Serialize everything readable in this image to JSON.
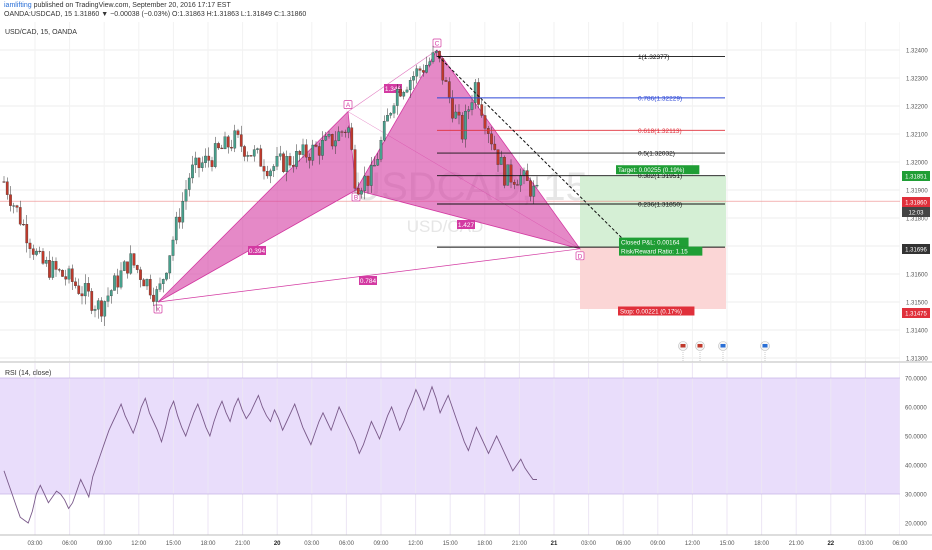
{
  "header": {
    "author": "iamlifting",
    "published": "published on TradingView.com, September 20, 2016 17:17 EST",
    "quote": "OANDA:USDCAD, 15  1.31860 ▼ −0.00038 (−0.03%)  O:1.31863  H:1.31863  L:1.31849  C:1.31860"
  },
  "main_label": "USD/CAD, 15, OANDA",
  "watermark": {
    "symbol": "USDCAD, 15",
    "sub": "USD/CAD"
  },
  "colors": {
    "bull": "#47a08c",
    "bear": "#c0392b",
    "pattern": "#d33aa2",
    "rsi_band": "#e9ddfb",
    "fib_blue": "#2c47d6",
    "fib_red": "#e0303b",
    "target": "#1f9e35",
    "stop": "#e0303b"
  },
  "chart_data": [
    {
      "type": "candlestick",
      "title": "USD/CAD, 15, OANDA",
      "ylim": [
        1.3128,
        1.3246
      ],
      "price_ticks": [
        "1.32400",
        "1.32300",
        "1.32200",
        "1.32100",
        "1.32000",
        "1.31900",
        "1.31800",
        "1.31700",
        "1.31600",
        "1.31500",
        "1.31400",
        "1.31300"
      ],
      "time_ticks": [
        "03:00",
        "06:00",
        "09:00",
        "12:00",
        "15:00",
        "18:00",
        "21:00",
        "20",
        "03:00",
        "06:00",
        "09:00",
        "12:00",
        "15:00",
        "18:00",
        "21:00",
        "21",
        "03:00",
        "06:00",
        "09:00",
        "12:00",
        "15:00",
        "18:00",
        "21:00",
        "22",
        "03:00",
        "06:00"
      ],
      "price_badges": [
        {
          "value": "1.31851",
          "color": "#1f9e35"
        },
        {
          "value": "1.31860",
          "color": "#e0303b"
        },
        {
          "value": "12:03",
          "color": "#444444"
        },
        {
          "value": "1.31696",
          "color": "#333333"
        },
        {
          "value": "1.31475",
          "color": "#e0303b"
        }
      ],
      "harmonic_points": [
        {
          "label": "X",
          "price": 1.315
        },
        {
          "label": "A",
          "price": 1.3218
        },
        {
          "label": "B",
          "price": 1.319
        },
        {
          "label": "C",
          "price": 1.324
        },
        {
          "label": "D",
          "price": 1.3169
        }
      ],
      "harmonic_ratios": [
        "0.394",
        "0.784",
        "1.346",
        "1.427"
      ],
      "fib_levels": [
        {
          "ratio": "1",
          "price": 1.32377
        },
        {
          "ratio": "0.786",
          "price": 1.32229
        },
        {
          "ratio": "0.618",
          "price": 1.32113
        },
        {
          "ratio": "0.5",
          "price": 1.32032
        },
        {
          "ratio": "0.382",
          "price": 1.31951
        },
        {
          "ratio": "0.236",
          "price": 1.3185
        },
        {
          "ratio": "0",
          "price": 1.31696
        }
      ],
      "position": {
        "entry": 1.31696,
        "target_price": 1.31951,
        "stop_price": 1.31475,
        "target_label": "Target: 0.00255 (0.19%)",
        "open_label": "Closed P&L: 0.00164",
        "rr_label": "Risk/Reward Ratio: 1.15",
        "stop_label": "Stop: 0.00221 (0.17%)"
      }
    },
    {
      "type": "line",
      "title": "RSI (14, close)",
      "ylim": [
        15,
        75
      ],
      "ticks": [
        "70.0000",
        "60.0000",
        "50.0000",
        "40.0000",
        "30.0000",
        "20.0000"
      ],
      "band": [
        30,
        70
      ],
      "values": [
        38,
        34,
        30,
        26,
        22,
        21,
        20,
        24,
        30,
        33,
        30,
        27,
        29,
        31,
        30,
        28,
        25,
        27,
        31,
        35,
        32,
        29,
        36,
        40,
        44,
        48,
        52,
        55,
        58,
        61,
        57,
        54,
        51,
        55,
        60,
        63,
        58,
        55,
        52,
        48,
        53,
        59,
        62,
        57,
        53,
        50,
        54,
        58,
        61,
        57,
        53,
        50,
        55,
        59,
        62,
        58,
        55,
        60,
        63,
        59,
        56,
        58,
        61,
        64,
        60,
        57,
        55,
        59,
        56,
        52,
        55,
        58,
        61,
        57,
        53,
        50,
        47,
        51,
        55,
        58,
        55,
        52,
        56,
        60,
        57,
        54,
        51,
        48,
        44,
        47,
        51,
        55,
        52,
        49,
        53,
        57,
        60,
        56,
        52,
        55,
        59,
        62,
        66,
        63,
        59,
        63,
        67,
        63,
        58,
        61,
        64,
        60,
        56,
        52,
        48,
        45,
        49,
        53,
        50,
        47,
        44,
        47,
        50,
        47,
        44,
        41,
        38,
        40,
        42,
        39,
        37,
        35,
        35
      ]
    }
  ]
}
